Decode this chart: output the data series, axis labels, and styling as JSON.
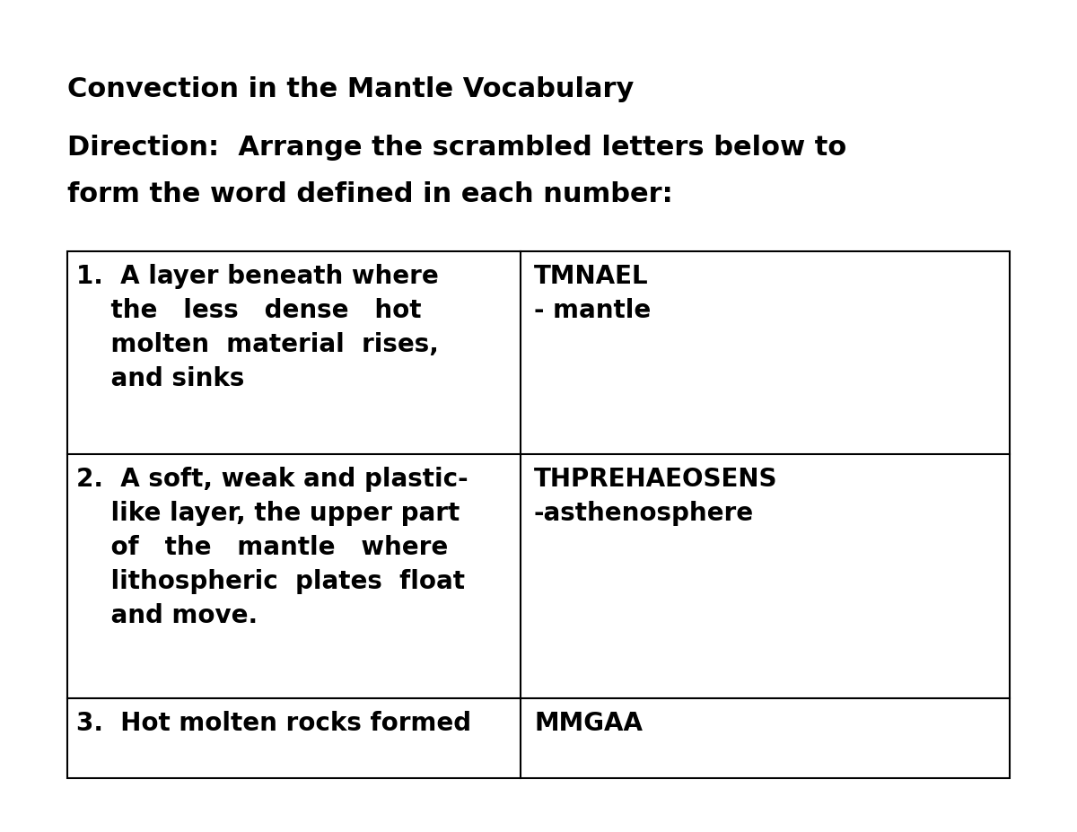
{
  "title": "Convection in the Mantle Vocabulary",
  "direction_line1": "Direction:  Arrange the scrambled letters below to",
  "direction_line2": "form the word defined in each number:",
  "background_color": "#ffffff",
  "title_fontsize": 22,
  "direction_fontsize": 22,
  "table_fontsize": 20,
  "rows": [
    {
      "left_lines": [
        "1.  A layer beneath where",
        "    the   less   dense   hot",
        "    molten  material  rises,",
        "    and sinks"
      ],
      "right_lines": [
        "TMNAEL",
        "- mantle"
      ]
    },
    {
      "left_lines": [
        "2.  A soft, weak and plastic-",
        "    like layer, the upper part",
        "    of   the   mantle   where",
        "    lithospheric  plates  float",
        "    and move."
      ],
      "right_lines": [
        "THPREHAEOSENS",
        "-asthenosphere"
      ]
    },
    {
      "left_lines": [
        "3.  Hot molten rocks formed"
      ],
      "right_lines": [
        "MMGAA"
      ]
    }
  ]
}
